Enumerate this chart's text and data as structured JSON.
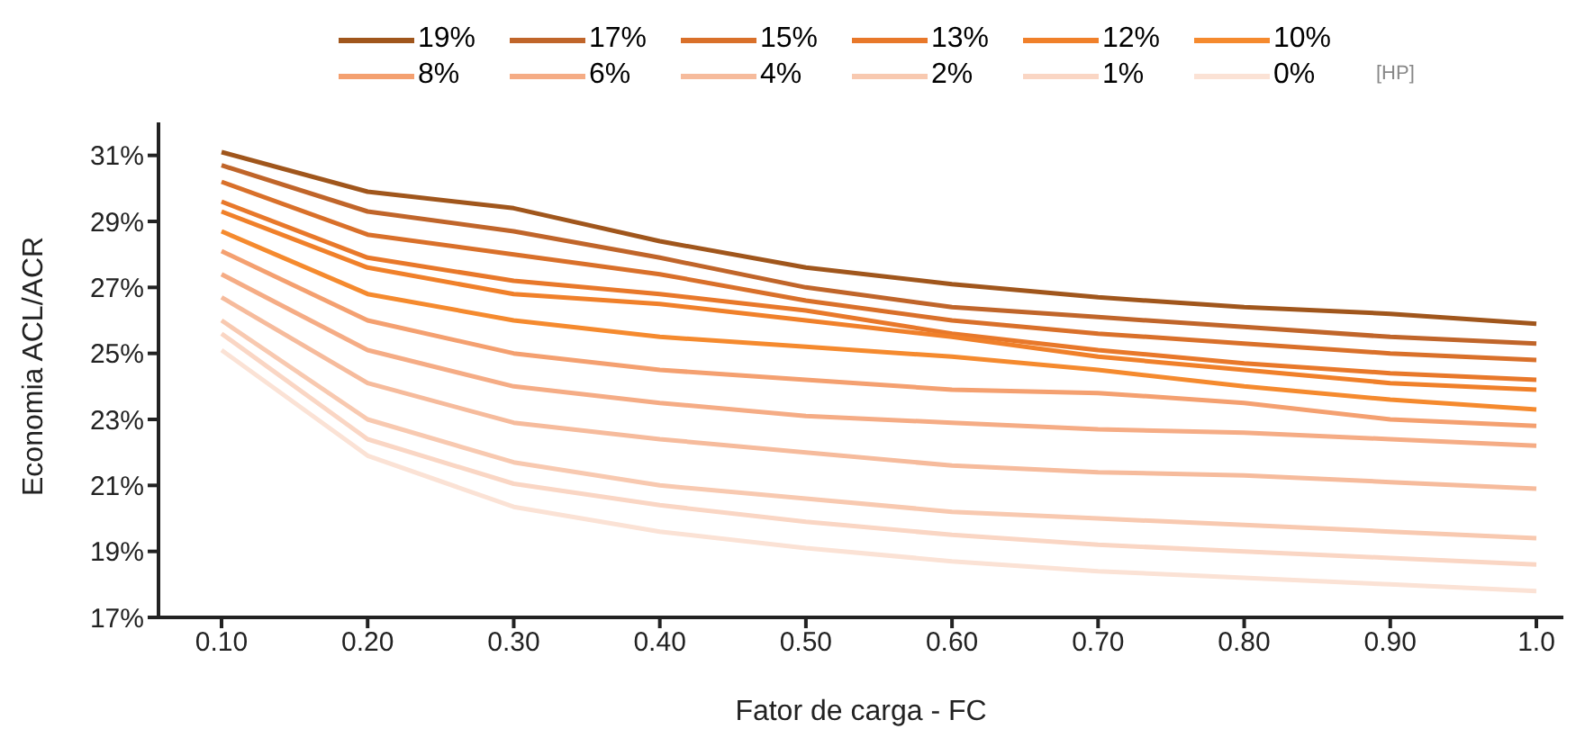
{
  "chart_data": {
    "type": "line",
    "xlabel": "Fator de carga - FC",
    "ylabel": "Economia ACL/ACR",
    "annotations": [
      "[HP]"
    ],
    "categories": [
      "0.10",
      "0.20",
      "0.30",
      "0.40",
      "0.50",
      "0.60",
      "0.70",
      "0.80",
      "0.90",
      "1.0"
    ],
    "ylim": [
      17,
      32
    ],
    "yticks": [
      {
        "value": 17,
        "label": "17%"
      },
      {
        "value": 19,
        "label": "19%"
      },
      {
        "value": 21,
        "label": "21%"
      },
      {
        "value": 23,
        "label": "23%"
      },
      {
        "value": 25,
        "label": "25%"
      },
      {
        "value": 27,
        "label": "27%"
      },
      {
        "value": 29,
        "label": "29%"
      },
      {
        "value": 31,
        "label": "31%"
      }
    ],
    "grid": false,
    "legend": "top",
    "marker": "none",
    "line_style": "solid",
    "series": [
      {
        "name": "19%",
        "color": "#a0561c",
        "values": [
          31.1,
          29.9,
          29.4,
          28.4,
          27.6,
          27.1,
          26.7,
          26.4,
          26.2,
          25.9
        ]
      },
      {
        "name": "17%",
        "color": "#c0652a",
        "values": [
          30.7,
          29.3,
          28.7,
          27.9,
          27.0,
          26.4,
          26.1,
          25.8,
          25.5,
          25.3
        ]
      },
      {
        "name": "15%",
        "color": "#d9702a",
        "values": [
          30.2,
          28.6,
          28.0,
          27.4,
          26.6,
          26.0,
          25.6,
          25.3,
          25.0,
          24.8
        ]
      },
      {
        "name": "13%",
        "color": "#e8782a",
        "values": [
          29.6,
          27.9,
          27.2,
          26.8,
          26.3,
          25.6,
          25.1,
          24.7,
          24.4,
          24.2
        ]
      },
      {
        "name": "12%",
        "color": "#f0802a",
        "values": [
          29.3,
          27.6,
          26.8,
          26.5,
          26.0,
          25.5,
          24.9,
          24.5,
          24.1,
          23.9
        ]
      },
      {
        "name": "10%",
        "color": "#f58a2e",
        "values": [
          28.7,
          26.8,
          26.0,
          25.5,
          25.2,
          24.9,
          24.5,
          24.0,
          23.6,
          23.3
        ]
      },
      {
        "name": "8%",
        "color": "#f4a070",
        "values": [
          28.1,
          26.0,
          25.0,
          24.5,
          24.2,
          23.9,
          23.8,
          23.5,
          23.0,
          22.8
        ]
      },
      {
        "name": "6%",
        "color": "#f5ac85",
        "values": [
          27.4,
          25.1,
          24.0,
          23.5,
          23.1,
          22.9,
          22.7,
          22.6,
          22.4,
          22.2
        ]
      },
      {
        "name": "4%",
        "color": "#f6bb9c",
        "values": [
          26.7,
          24.1,
          22.9,
          22.4,
          22.0,
          21.6,
          21.4,
          21.3,
          21.1,
          20.9
        ]
      },
      {
        "name": "2%",
        "color": "#f8c9b0",
        "values": [
          26.0,
          23.0,
          21.7,
          21.0,
          20.6,
          20.2,
          20.0,
          19.8,
          19.6,
          19.4
        ]
      },
      {
        "name": "1%",
        "color": "#fad6c4",
        "values": [
          25.6,
          22.4,
          21.05,
          20.4,
          19.9,
          19.5,
          19.2,
          19.0,
          18.8,
          18.6
        ]
      },
      {
        "name": "0%",
        "color": "#fbe2d5",
        "values": [
          25.1,
          21.9,
          20.35,
          19.6,
          19.1,
          18.7,
          18.4,
          18.2,
          18.0,
          17.8
        ]
      }
    ]
  }
}
